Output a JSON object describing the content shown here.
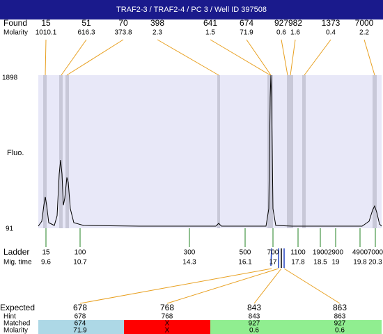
{
  "header": {
    "title": "TRAF2-3 / TRAF2-4 / PC 3 / Well ID 397508"
  },
  "found": {
    "label": "Found",
    "sublabel": "Molarity",
    "sizes": [
      15,
      51,
      70,
      398,
      641,
      674,
      927,
      982,
      1373,
      7000
    ],
    "molarity": [
      1010.1,
      616.3,
      373.8,
      2.3,
      1.5,
      71.9,
      0.6,
      1.6,
      0.4,
      2.2
    ]
  },
  "plot": {
    "ymax": 1898,
    "ymin": 91,
    "ylabel": "Fluo."
  },
  "ladder": {
    "label": "Ladder",
    "sublabel": "Mig. time",
    "sizes": [
      15,
      100,
      300,
      500,
      700,
      1100,
      1900,
      2900,
      4900,
      7000
    ],
    "times": [
      9.6,
      10.7,
      14.3,
      16.1,
      17,
      17.8,
      18.5,
      19,
      19.8,
      20.3
    ]
  },
  "expected": {
    "label": "Expected",
    "hint_label": "Hint",
    "matched_label": "Matched",
    "molarity_label": "Molarity",
    "values": [
      678,
      768,
      843,
      863
    ],
    "hint": [
      678,
      768,
      843,
      863
    ],
    "matched": [
      674,
      "X",
      927,
      927
    ],
    "molarity": [
      71.9,
      "X",
      0.6,
      0.6
    ]
  }
}
